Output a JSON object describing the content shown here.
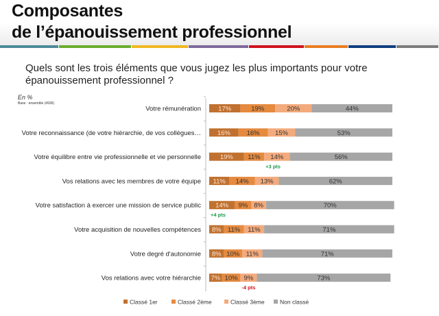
{
  "title_line1": "Composantes",
  "title_line2": "de l’épanouissement professionnel",
  "rule_colors": [
    "#4b8a96",
    "#6aad2d",
    "#f0b722",
    "#7f6a9b",
    "#d0121d",
    "#ea7d22",
    "#0f3f7f",
    "#7c7c7c"
  ],
  "question_line1": "Quels sont les trois éléments que vous jugez les plus importants pour votre",
  "question_line2": "épanouissement professionnel ?",
  "unit": "En %",
  "base": "Base : ensemble (4936)",
  "chart_data": {
    "type": "bar",
    "orientation": "horizontal",
    "stacked": true,
    "categories": [
      "Votre rémunération",
      "Votre reconnaissance (de votre hiérarchie, de vos collègues…",
      "Votre équilibre entre vie professionnelle et vie personnelle",
      "Vos relations avec les membres de votre équipe",
      "Votre satisfaction à exercer une mission de service public",
      "Votre acquisition de nouvelles compétences",
      "Votre degré d'autonomie",
      "Vos relations avec votre hiérarchie"
    ],
    "series": [
      {
        "name": "Classé 1er",
        "color": "#c0712f",
        "values": [
          17,
          16,
          19,
          11,
          14,
          8,
          8,
          7
        ]
      },
      {
        "name": "Classé 2ème",
        "color": "#e58a3f",
        "values": [
          19,
          16,
          11,
          14,
          9,
          11,
          10,
          10
        ]
      },
      {
        "name": "Classé 3ème",
        "color": "#f3aa7c",
        "values": [
          20,
          15,
          14,
          13,
          8,
          11,
          11,
          9
        ]
      },
      {
        "name": "Non classé",
        "color": "#a6a6a6",
        "values": [
          44,
          53,
          56,
          62,
          70,
          71,
          71,
          73
        ]
      }
    ],
    "annotations": [
      {
        "category_index": 2,
        "text": "+3 pts",
        "color": "#1a9a4a",
        "series_index": 2
      },
      {
        "category_index": 4,
        "text": "+4 pts",
        "color": "#1a9a4a",
        "series_index": 0
      },
      {
        "category_index": 7,
        "text": "-4 pts",
        "color": "#d0121d",
        "series_index": 2
      }
    ],
    "legend": "bottom",
    "xlim": [
      0,
      100
    ]
  }
}
